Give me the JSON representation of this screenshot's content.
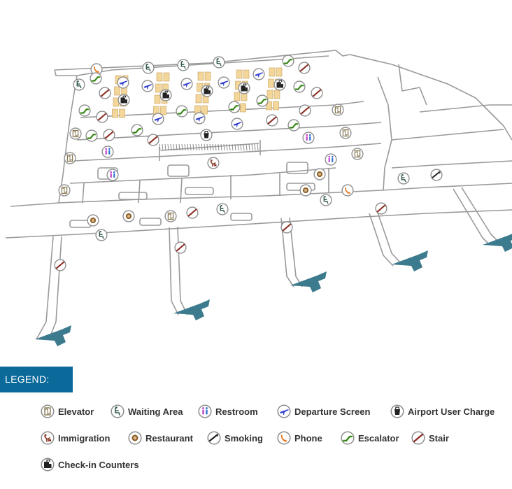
{
  "legend": {
    "title": "LEGEND:",
    "items": [
      {
        "key": "elevator",
        "label": "Elevator"
      },
      {
        "key": "waiting",
        "label": "Waiting Area"
      },
      {
        "key": "restroom",
        "label": "Restroom"
      },
      {
        "key": "departure",
        "label": "Departure Screen"
      },
      {
        "key": "charge",
        "label": "Airport User Charge"
      },
      {
        "key": "immigration",
        "label": "Immigration"
      },
      {
        "key": "restaurant",
        "label": "Restaurant"
      },
      {
        "key": "smoking",
        "label": "Smoking"
      },
      {
        "key": "phone",
        "label": "Phone"
      },
      {
        "key": "escalator",
        "label": "Escalator"
      },
      {
        "key": "stair",
        "label": "Stair"
      },
      {
        "key": "checkin",
        "label": "Check-in Counters"
      }
    ]
  },
  "colors": {
    "legend_bg": "#0b6a9a",
    "jet_bridge": "#3c7a8e",
    "counter": "#f2d69a",
    "outline": "#9a9a9a",
    "icon_departure": "#2f3fd0",
    "icon_restroom": "#c23cc8",
    "icon_phone": "#e87a22",
    "icon_escalator": "#5aa832",
    "icon_stair": "#8a2a20",
    "icon_elevator": "#8a7a55",
    "icon_waiting": "#355a4c",
    "icon_restaurant": "#8a5a20",
    "icon_immigration": "#8a3a2a"
  }
}
